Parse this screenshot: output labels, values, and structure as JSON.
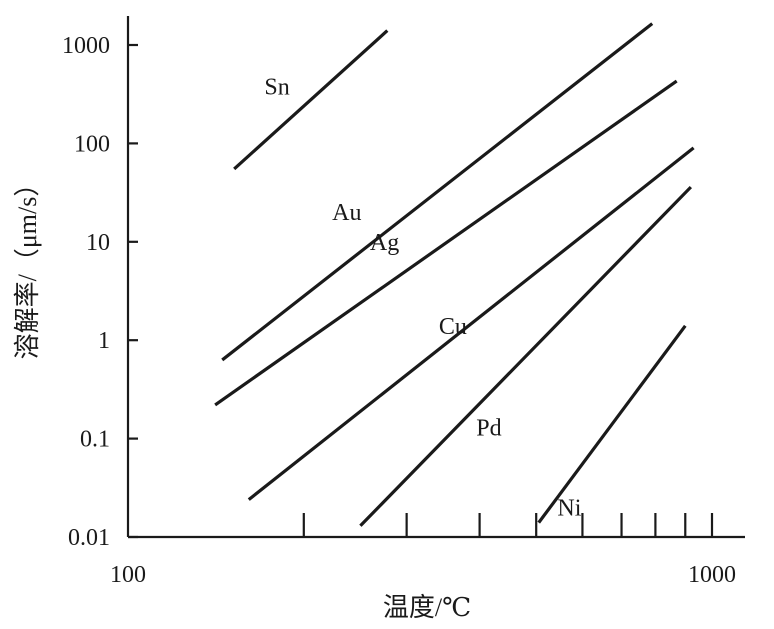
{
  "chart_data": {
    "type": "line",
    "xlabel": "温度/℃",
    "ylabel": "溶解率/（μm/s）",
    "x_scale": "log",
    "y_scale": "log",
    "xlim": [
      100,
      1100
    ],
    "ylim": [
      0.01,
      2000
    ],
    "x_tick_labels": [
      {
        "value": 100,
        "label": "100"
      },
      {
        "value": 1000,
        "label": "1000"
      }
    ],
    "x_minor_ticks": [
      200,
      300,
      400,
      500,
      600,
      700,
      800,
      900,
      1000
    ],
    "y_ticks": [
      {
        "value": 0.01,
        "label": "0.01"
      },
      {
        "value": 0.1,
        "label": "0.1"
      },
      {
        "value": 1,
        "label": "1"
      },
      {
        "value": 10,
        "label": "10"
      },
      {
        "value": 100,
        "label": "100"
      },
      {
        "value": 1000,
        "label": "1000"
      }
    ],
    "grid": false,
    "legend": "none",
    "series": [
      {
        "name": "Sn",
        "x": [
          152,
          278
        ],
        "y": [
          55,
          1400
        ],
        "label_at": [
          180,
          380
        ]
      },
      {
        "name": "Au",
        "x": [
          145,
          790
        ],
        "y": [
          0.63,
          1650
        ],
        "label_at": [
          237,
          20
        ]
      },
      {
        "name": "Ag",
        "x": [
          141,
          870
        ],
        "y": [
          0.22,
          430
        ],
        "label_at": [
          275,
          10
        ]
      },
      {
        "name": "Cu",
        "x": [
          161,
          930
        ],
        "y": [
          0.024,
          90
        ],
        "label_at": [
          360,
          1.4
        ]
      },
      {
        "name": "Pd",
        "x": [
          250,
          920
        ],
        "y": [
          0.013,
          36
        ],
        "label_at": [
          415,
          0.13
        ]
      },
      {
        "name": "Ni",
        "x": [
          505,
          900
        ],
        "y": [
          0.014,
          1.4
        ],
        "label_at": [
          570,
          0.02
        ]
      }
    ]
  }
}
